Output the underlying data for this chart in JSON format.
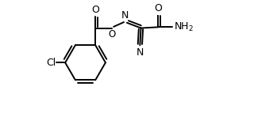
{
  "bg_color": "#ffffff",
  "line_color": "#000000",
  "line_width": 1.4,
  "font_size": 9,
  "figsize": [
    3.49,
    1.57
  ],
  "dpi": 100,
  "xlim": [
    0,
    10.5
  ],
  "ylim": [
    0,
    5.0
  ]
}
